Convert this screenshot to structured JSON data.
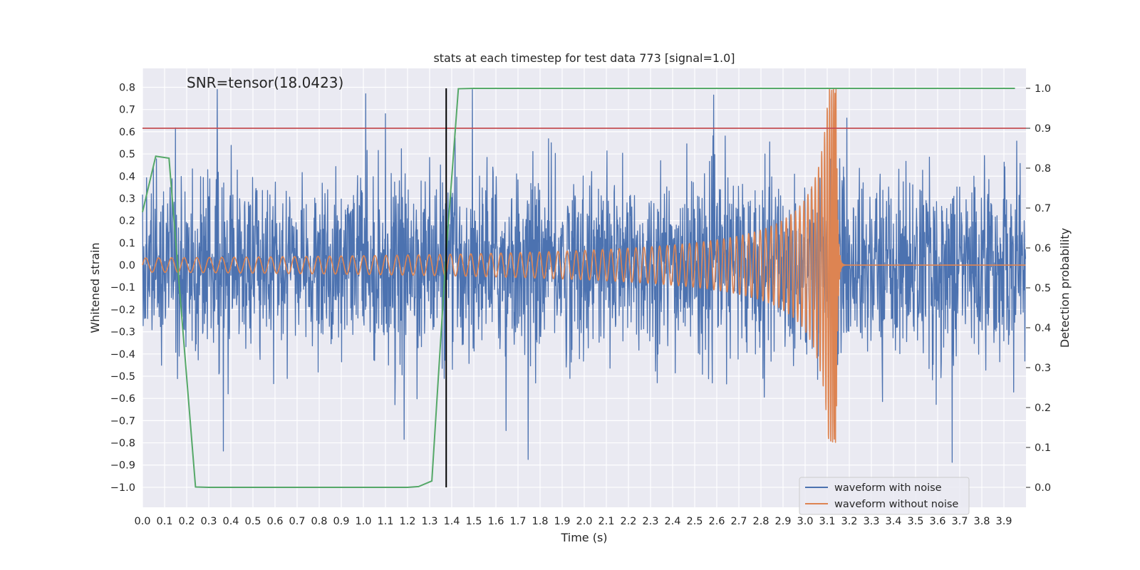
{
  "chart_data": {
    "type": "line",
    "title": "stats at each timestep for test data 773 [signal=1.0]",
    "xlabel": "Time (s)",
    "ylabel": "Whitened strain",
    "ylabel_right": "Detection probability",
    "annotation": "SNR=tensor(18.0423)",
    "xlim": [
      0.0,
      4.0
    ],
    "ylim": [
      -1.09,
      0.885
    ],
    "ylim_right": [
      -0.05,
      1.05
    ],
    "x_ticks": [
      "0.0",
      "0.1",
      "0.2",
      "0.3",
      "0.4",
      "0.5",
      "0.6",
      "0.7",
      "0.8",
      "0.9",
      "1.0",
      "1.1",
      "1.2",
      "1.3",
      "1.4",
      "1.5",
      "1.6",
      "1.7",
      "1.8",
      "1.9",
      "2.0",
      "2.1",
      "2.2",
      "2.3",
      "2.4",
      "2.5",
      "2.6",
      "2.7",
      "2.8",
      "2.9",
      "3.0",
      "3.1",
      "3.2",
      "3.3",
      "3.4",
      "3.5",
      "3.6",
      "3.7",
      "3.8",
      "3.9"
    ],
    "y_ticks": [
      "0.8",
      "0.7",
      "0.6",
      "0.5",
      "0.4",
      "0.3",
      "0.2",
      "0.1",
      "0.0",
      "−0.1",
      "−0.2",
      "−0.3",
      "−0.4",
      "−0.5",
      "−0.6",
      "−0.7",
      "−0.8",
      "−0.9",
      "−1.0"
    ],
    "y_ticks_right": [
      "1.0",
      "0.9",
      "0.8",
      "0.7",
      "0.6",
      "0.5",
      "0.4",
      "0.3",
      "0.2",
      "0.1",
      "0.0"
    ],
    "threshold": 0.9,
    "vertical_marker_x": 1.375,
    "series": [
      {
        "name": "waveform with noise",
        "color": "#4c72b0",
        "axis": "left",
        "description": "Gaussian-like noise, amplitude ~0.3 std, peaks to ±0.8 over 0–4 s"
      },
      {
        "name": "waveform without noise",
        "color": "#dd8452",
        "axis": "left",
        "description": "chirp: amplitude 0.03 rising to 0.8 at merger t=3.14 s, ~0 afterwards"
      },
      {
        "name": "detection probability",
        "color": "#55a868",
        "axis": "right",
        "x": [
          0.0,
          0.06,
          0.12,
          0.24,
          0.3,
          1.2,
          1.25,
          1.31,
          1.375,
          1.43,
          1.5,
          3.95
        ],
        "y": [
          0.69,
          0.83,
          0.825,
          0.001,
          0.0,
          0.0,
          0.002,
          0.016,
          0.59,
          0.999,
          1.0,
          1.0
        ]
      },
      {
        "name": "threshold",
        "color": "#c44e52",
        "axis": "right",
        "x": [
          0.0,
          4.0
        ],
        "y": [
          0.9,
          0.9
        ]
      }
    ],
    "legend": {
      "position": "bottom-right",
      "entries": [
        {
          "label": "waveform with noise",
          "color": "#4c72b0"
        },
        {
          "label": "waveform without noise",
          "color": "#dd8452"
        }
      ]
    },
    "grid": true,
    "background": "#eaeaf2"
  }
}
